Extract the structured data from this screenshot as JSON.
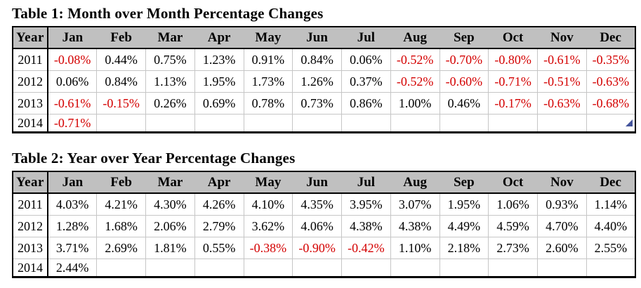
{
  "colors": {
    "header_bg": "#c0c0c0",
    "table_border": "#000000",
    "gridline": "#c6c6c6",
    "negative_text": "#d40000",
    "positive_text": "#000000",
    "artifact_blue": "#44549c"
  },
  "columns": [
    "Year",
    "Jan",
    "Feb",
    "Mar",
    "Apr",
    "May",
    "Jun",
    "Jul",
    "Aug",
    "Sep",
    "Oct",
    "Nov",
    "Dec"
  ],
  "tables": [
    {
      "title": "Table 1: Month over Month Percentage Changes",
      "rows": [
        {
          "year": "2011",
          "values": [
            "-0.08%",
            "0.44%",
            "0.75%",
            "1.23%",
            "0.91%",
            "0.84%",
            "0.06%",
            "-0.52%",
            "-0.70%",
            "-0.80%",
            "-0.61%",
            "-0.35%"
          ]
        },
        {
          "year": "2012",
          "values": [
            "0.06%",
            "0.84%",
            "1.13%",
            "1.95%",
            "1.73%",
            "1.26%",
            "0.37%",
            "-0.52%",
            "-0.60%",
            "-0.71%",
            "-0.51%",
            "-0.63%"
          ]
        },
        {
          "year": "2013",
          "values": [
            "-0.61%",
            "-0.15%",
            "0.26%",
            "0.69%",
            "0.78%",
            "0.73%",
            "0.86%",
            "1.00%",
            "0.46%",
            "-0.17%",
            "-0.63%",
            "-0.68%"
          ]
        },
        {
          "year": "2014",
          "values": [
            "-0.71%",
            "",
            "",
            "",
            "",
            "",
            "",
            "",
            "",
            "",
            "",
            ""
          ]
        }
      ]
    },
    {
      "title": "Table 2: Year over Year Percentage Changes",
      "rows": [
        {
          "year": "2011",
          "values": [
            "4.03%",
            "4.21%",
            "4.30%",
            "4.26%",
            "4.10%",
            "4.35%",
            "3.95%",
            "3.07%",
            "1.95%",
            "1.06%",
            "0.93%",
            "1.14%"
          ]
        },
        {
          "year": "2012",
          "values": [
            "1.28%",
            "1.68%",
            "2.06%",
            "2.79%",
            "3.62%",
            "4.06%",
            "4.38%",
            "4.38%",
            "4.49%",
            "4.59%",
            "4.70%",
            "4.40%"
          ]
        },
        {
          "year": "2013",
          "values": [
            "3.71%",
            "2.69%",
            "1.81%",
            "0.55%",
            "-0.38%",
            "-0.90%",
            "-0.42%",
            "1.10%",
            "2.18%",
            "2.73%",
            "2.60%",
            "2.55%"
          ]
        },
        {
          "year": "2014",
          "values": [
            "2.44%",
            "",
            "",
            "",
            "",
            "",
            "",
            "",
            "",
            "",
            "",
            ""
          ]
        }
      ]
    }
  ]
}
